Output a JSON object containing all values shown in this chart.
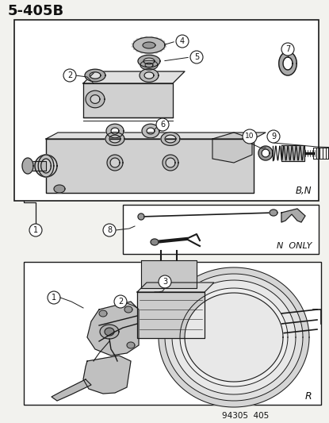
{
  "title": "5-405B",
  "bg_color": "#f2f2ee",
  "box_bg": "#ffffff",
  "line_color": "#1a1a1a",
  "text_color": "#111111",
  "footnote": "94305  405",
  "box1_label": "B,N",
  "box2_label": "N  ONLY",
  "box3_label": "R",
  "gray_part": "#888888",
  "gray_light": "#cccccc",
  "gray_mid": "#aaaaaa"
}
